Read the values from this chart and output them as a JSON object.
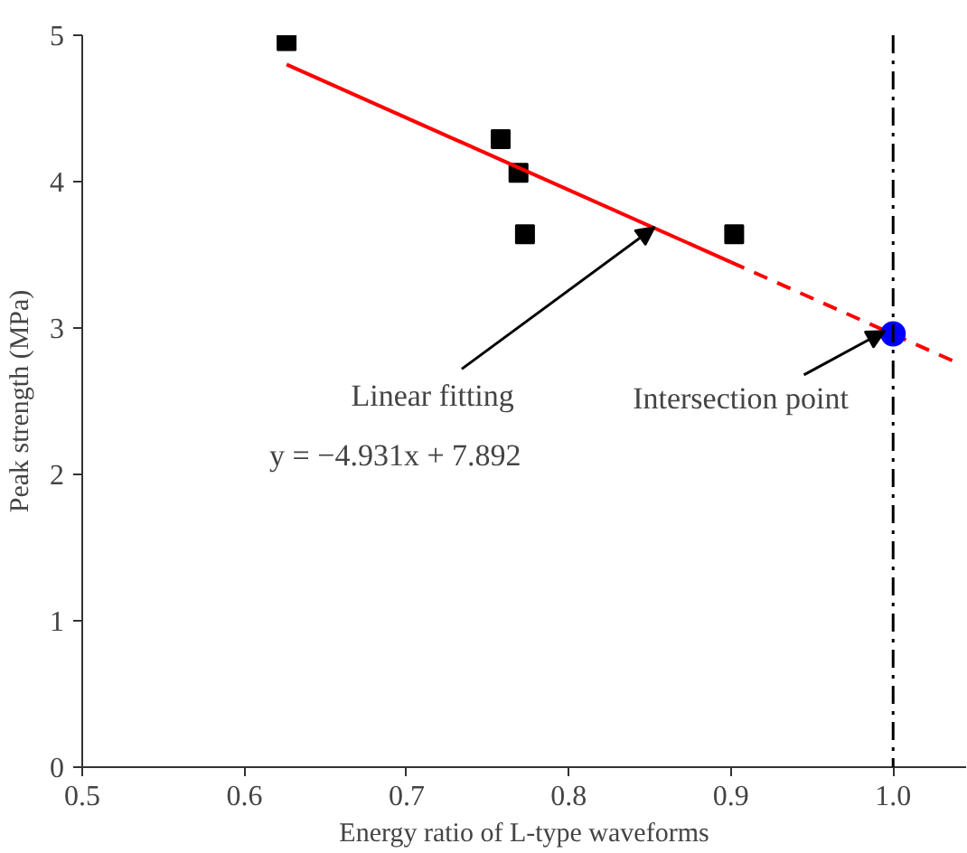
{
  "chart_data": {
    "type": "scatter",
    "xlabel": "Energy ratio of L-type waveforms",
    "ylabel": "Peak strength (MPa)",
    "xlim": [
      0.5,
      1.045
    ],
    "xticks": [
      0.5,
      0.6,
      0.7,
      0.8,
      0.9,
      {
        "value": 1.0,
        "label": "1.0"
      }
    ],
    "ylim": [
      0,
      5
    ],
    "yticks": [
      0,
      1,
      2,
      3,
      4,
      5
    ],
    "grid": false,
    "series": [
      {
        "marker": "square",
        "color": "#000000",
        "x": [
          0.626,
          0.758,
          0.769,
          0.773,
          0.902
        ],
        "values": [
          4.96,
          4.29,
          4.06,
          3.64,
          3.64
        ]
      },
      {
        "type": "line",
        "line_style": "solid",
        "color": "#ff0000",
        "x": [
          0.626,
          0.9
        ],
        "values": [
          4.8,
          3.45
        ]
      },
      {
        "type": "line",
        "line_style": "dashed",
        "color": "#ff0000",
        "x": [
          0.9,
          1.04
        ],
        "values": [
          3.45,
          2.76
        ]
      },
      {
        "marker": "circle",
        "color": "#0000ff",
        "x": [
          1.0
        ],
        "values": [
          2.96
        ]
      }
    ],
    "ref_lines": [
      {
        "axis": "x",
        "value": 1.0,
        "label": null,
        "color": "#000000",
        "line_style": "dashdot"
      }
    ],
    "annotations": [
      {
        "text": "Linear fitting",
        "x": 0.853,
        "y": 3.69
      },
      "y = −4.931x + 7.892",
      {
        "text": "Intersection point",
        "x": 0.995,
        "y": 2.98
      }
    ]
  }
}
